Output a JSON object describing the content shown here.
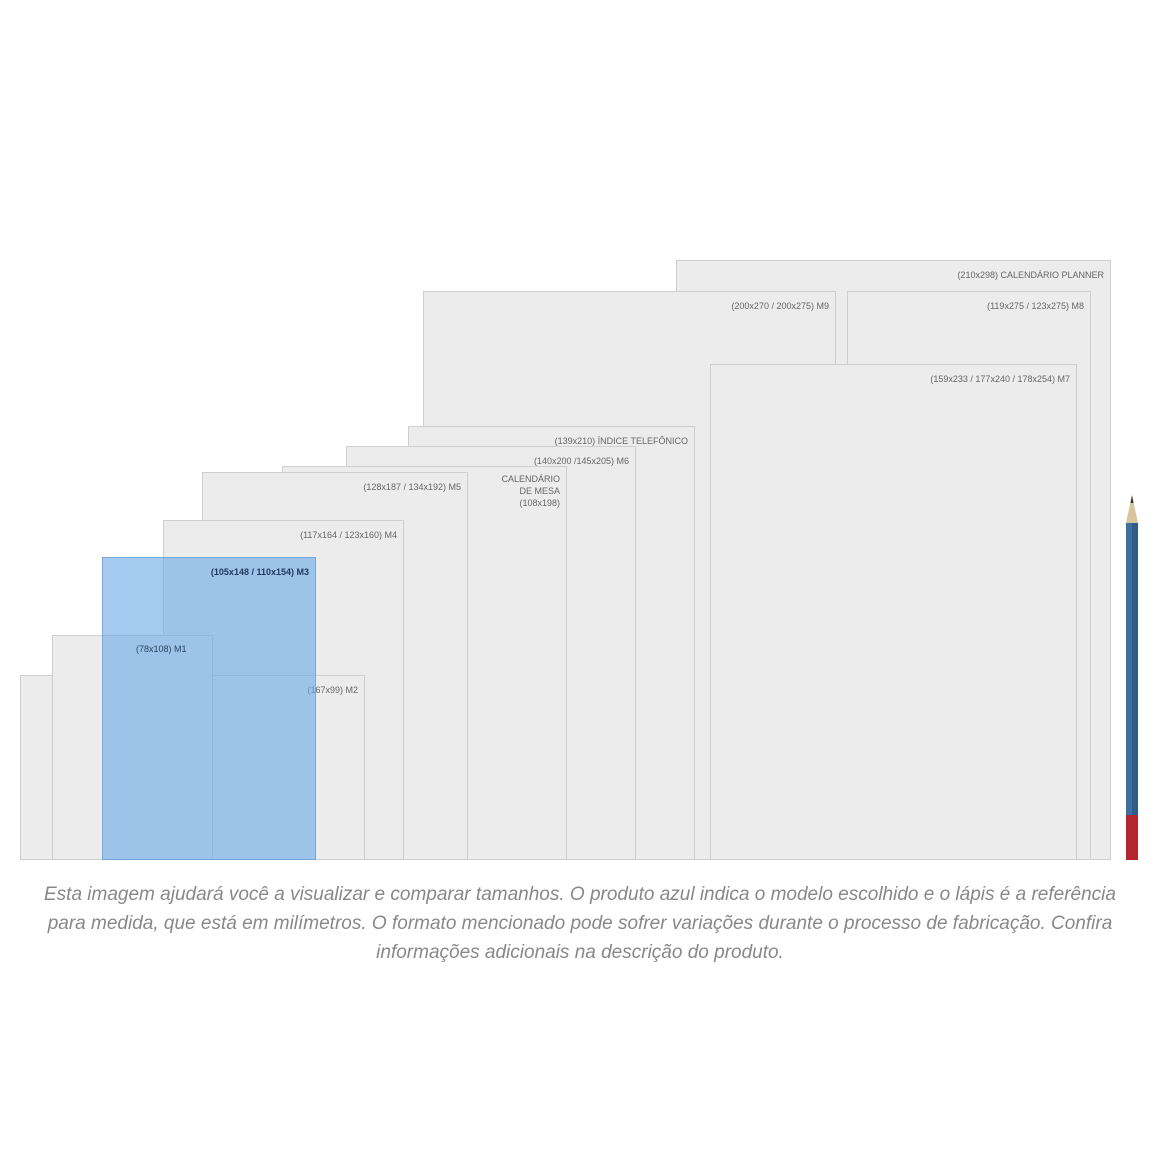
{
  "sizes": {
    "planner": "(210x298) CALENDÁRIO PLANNER",
    "m9": "(200x270 / 200x275) M9",
    "m8": "(119x275 / 123x275) M8",
    "m7": "(159x233 / 177x240 / 178x254) M7",
    "indice": "(139x210) ÍNDICE TELEFÔNICO",
    "m6": "(140x200 /145x205) M6",
    "calendario_mesa_1": "CALENDÁRIO",
    "calendario_mesa_2": "DE MESA",
    "calendario_mesa_3": "(108x198)",
    "m5": "(128x187 / 134x192) M5",
    "m4": "(117x164 / 123x160) M4",
    "m3": "(105x148 / 110x154) M3",
    "m1": "(78x108) M1",
    "m2": "(167x99) M2"
  },
  "colors": {
    "selected": "#6eaae6",
    "pencil_body": "#3f6f9e",
    "pencil_end": "#b3262e"
  },
  "caption": "Esta imagem ajudará você a visualizar e comparar tamanhos. O produto azul indica o modelo escolhido e o lápis é a referência para medida, que está em milímetros. O formato mencionado pode sofrer variações durante o processo de fabricação. Confira informações adicionais na descrição do produto."
}
